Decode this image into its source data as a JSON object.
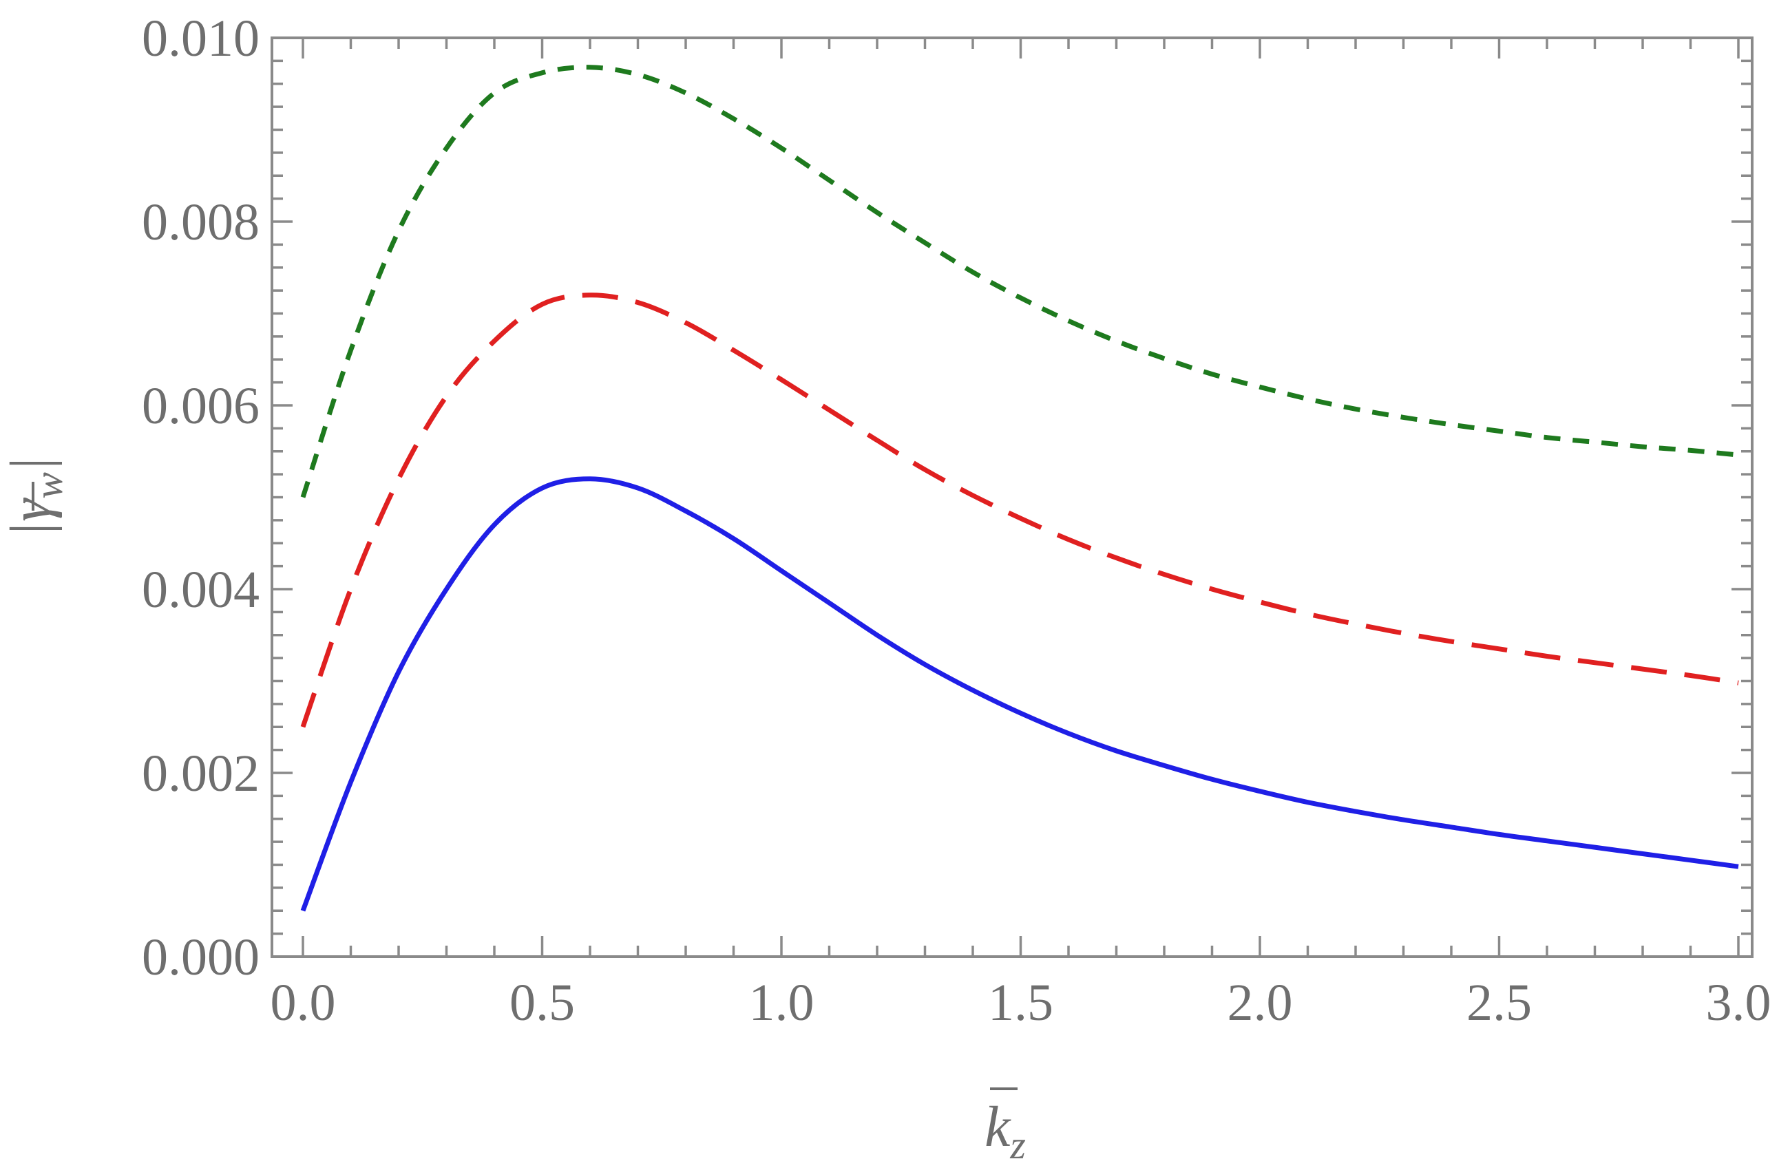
{
  "chart_data": {
    "type": "line",
    "xlabel": "k̄_z",
    "ylabel": "|γ̄_w|",
    "xlim": [
      0.0,
      3.0
    ],
    "ylim": [
      0.0,
      0.01
    ],
    "x_ticks": [
      "0.0",
      "0.5",
      "1.0",
      "1.5",
      "2.0",
      "2.5",
      "3.0"
    ],
    "y_ticks": [
      "0.000",
      "0.002",
      "0.004",
      "0.006",
      "0.008",
      "0.010"
    ],
    "grid": false,
    "x": [
      0.0,
      0.1,
      0.2,
      0.3,
      0.4,
      0.5,
      0.6,
      0.7,
      0.8,
      0.9,
      1.0,
      1.1,
      1.2,
      1.3,
      1.4,
      1.5,
      1.6,
      1.7,
      1.8,
      1.9,
      2.0,
      2.1,
      2.2,
      2.3,
      2.4,
      2.5,
      2.6,
      2.7,
      2.8,
      2.9,
      3.0
    ],
    "series": [
      {
        "color": "#1f1fe6",
        "style": "solid",
        "values": [
          0.0005,
          0.0019,
          0.0031,
          0.004,
          0.0047,
          0.0051,
          0.0052,
          0.0051,
          0.00485,
          0.00455,
          0.0042,
          0.00385,
          0.0035,
          0.00318,
          0.0029,
          0.00265,
          0.00243,
          0.00224,
          0.00208,
          0.00193,
          0.0018,
          0.00168,
          0.00158,
          0.00149,
          0.00141,
          0.00133,
          0.00126,
          0.00119,
          0.00112,
          0.00105,
          0.00098
        ]
      },
      {
        "color": "#e02020",
        "style": "long-dash",
        "values": [
          0.0025,
          0.004,
          0.0052,
          0.0061,
          0.0067,
          0.0071,
          0.0072,
          0.00712,
          0.0069,
          0.0066,
          0.00628,
          0.00595,
          0.00562,
          0.0053,
          0.00502,
          0.00477,
          0.00454,
          0.00434,
          0.00416,
          0.004,
          0.00386,
          0.00373,
          0.00362,
          0.00352,
          0.00343,
          0.00335,
          0.00327,
          0.0032,
          0.00313,
          0.00306,
          0.00298
        ]
      },
      {
        "color": "#1e7a1e",
        "style": "short-dash",
        "values": [
          0.005,
          0.0066,
          0.0079,
          0.0088,
          0.0094,
          0.00962,
          0.00968,
          0.0096,
          0.0094,
          0.00912,
          0.0088,
          0.00845,
          0.0081,
          0.00777,
          0.00745,
          0.00717,
          0.00692,
          0.0067,
          0.00651,
          0.00634,
          0.0062,
          0.00607,
          0.00596,
          0.00587,
          0.00579,
          0.00572,
          0.00565,
          0.0056,
          0.00555,
          0.00551,
          0.00546
        ]
      }
    ]
  }
}
